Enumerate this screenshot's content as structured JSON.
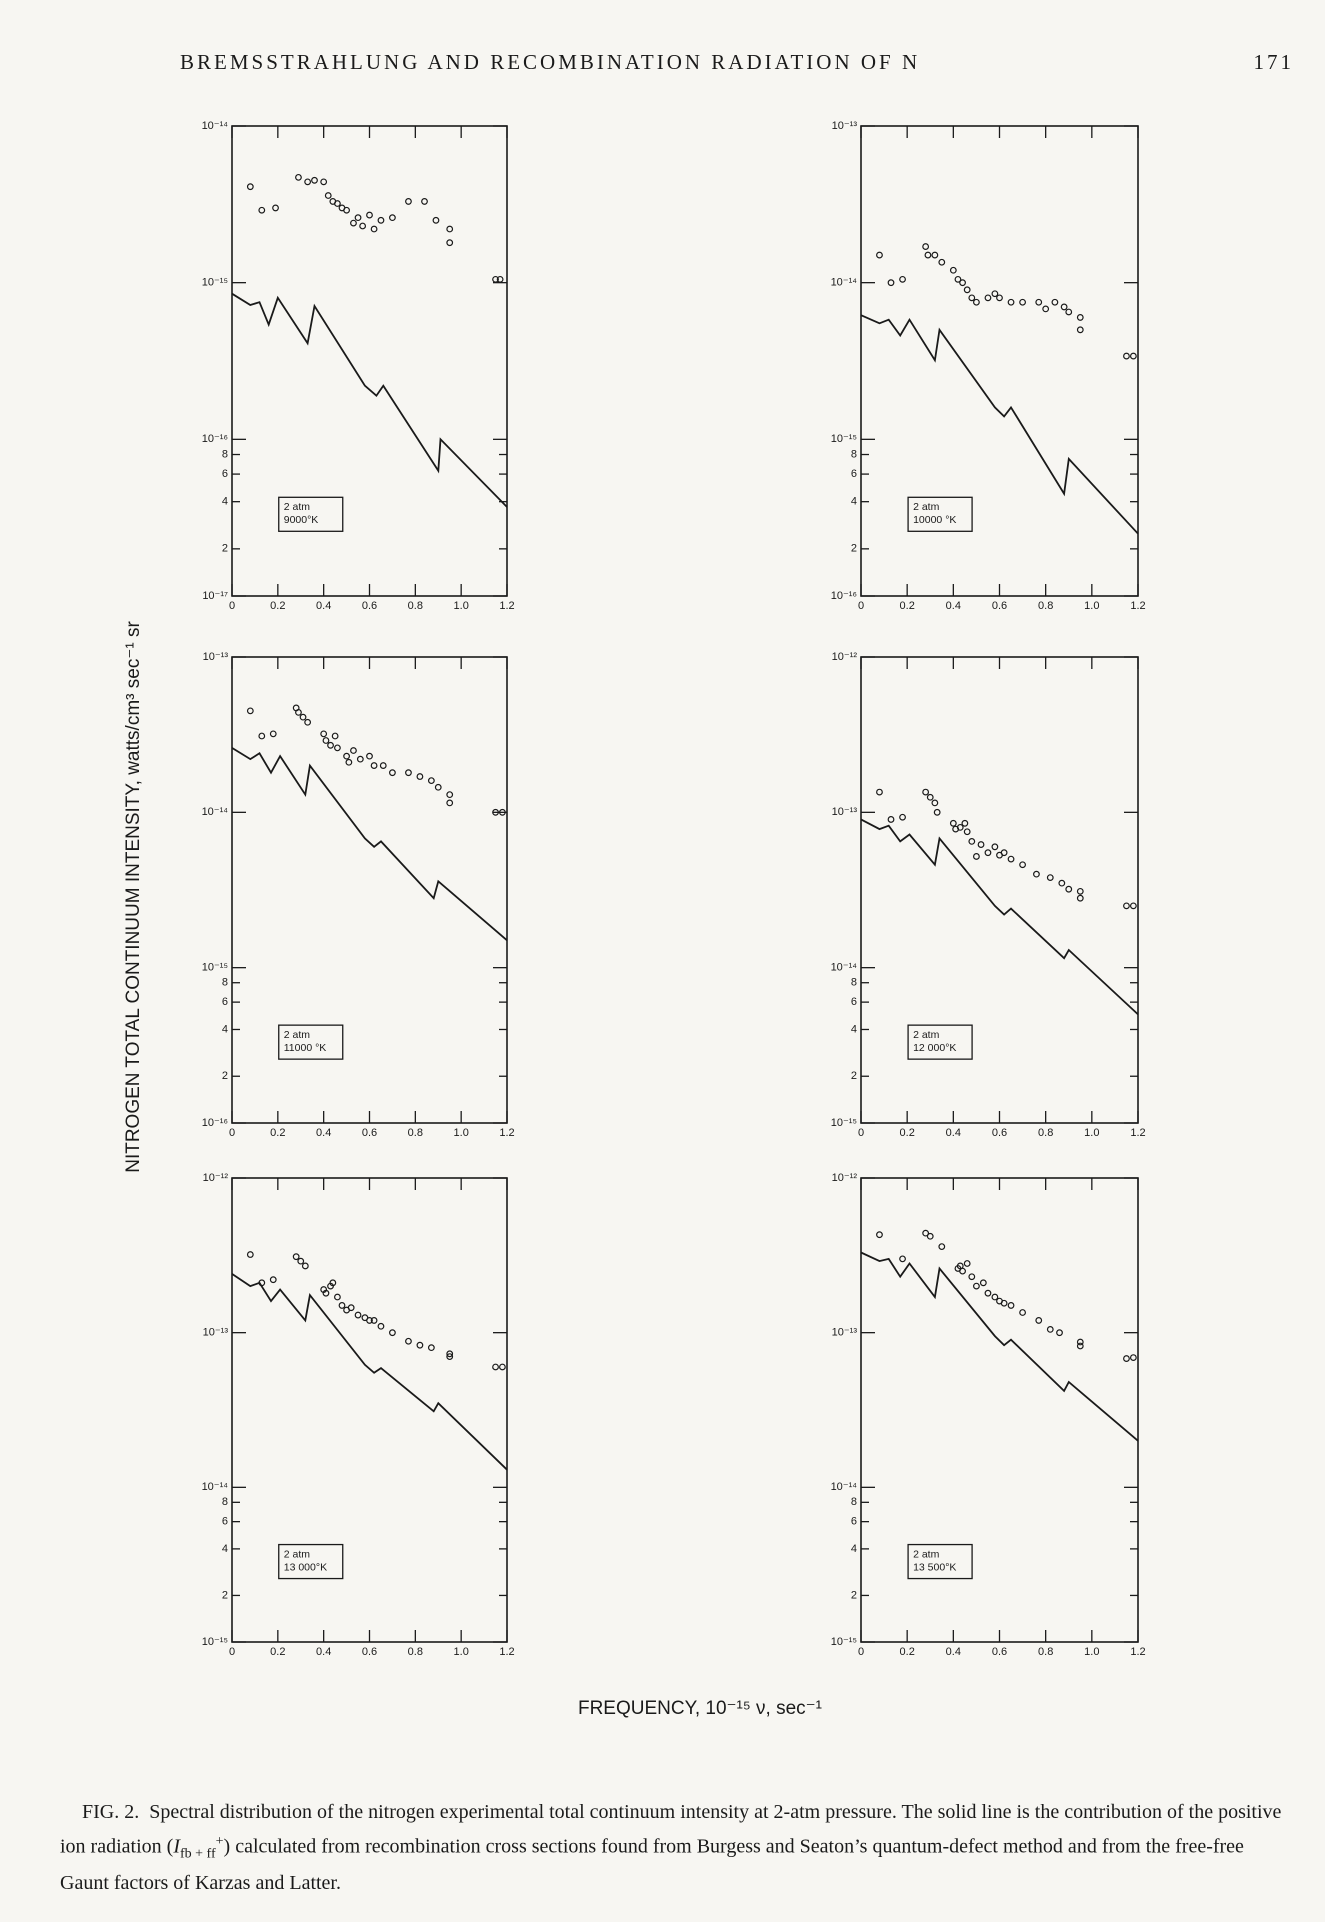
{
  "header": {
    "title": "BREMSSTRAHLUNG AND RECOMBINATION RADIATION OF N",
    "page_number": "171"
  },
  "y_axis_label": "NITROGEN TOTAL CONTINUUM INTENSITY, watts/cm³ sec⁻¹ sr",
  "x_axis_label": "FREQUENCY, 10⁻¹⁵ ν, sec⁻¹",
  "chart_data": [
    {
      "type": "scatter",
      "log_y": true,
      "annotation": [
        "2 atm",
        "9000°K"
      ],
      "xlim": [
        0,
        1.2
      ],
      "xticks": [
        0,
        0.2,
        0.4,
        0.6,
        0.8,
        {
          "value": 1,
          "label": "1.0"
        },
        1.2
      ],
      "ylim": [
        1e-17,
        1e-14
      ],
      "yticks": [
        {
          "value": 1e-14,
          "label": "10⁻¹⁴"
        },
        {
          "value": 1e-15,
          "label": "10⁻¹⁵"
        },
        {
          "value": 1e-16,
          "label": "10⁻¹⁶"
        },
        {
          "value": 8e-17,
          "label": "8"
        },
        {
          "value": 6e-17,
          "label": "6"
        },
        {
          "value": 4e-17,
          "label": "4"
        },
        {
          "value": 2e-17,
          "label": "2"
        },
        {
          "value": 1e-17,
          "label": "10⁻¹⁷"
        }
      ],
      "series": [
        {
          "type": "scatter",
          "color": "#1a1a1a",
          "x": [
            0.08,
            0.13,
            0.19,
            0.29,
            0.33,
            0.36,
            0.4,
            0.42,
            0.44,
            0.46,
            0.48,
            0.5,
            0.53,
            0.55,
            0.57,
            0.6,
            0.62,
            0.65,
            0.7,
            0.77,
            0.84,
            0.89,
            0.95,
            0.95,
            1.15,
            1.17
          ],
          "values": [
            4.1e-15,
            2.9e-15,
            3e-15,
            4.7e-15,
            4.4e-15,
            4.5e-15,
            4.4e-15,
            3.6e-15,
            3.3e-15,
            3.2e-15,
            3e-15,
            2.9e-15,
            2.4e-15,
            2.6e-15,
            2.3e-15,
            2.7e-15,
            2.2e-15,
            2.5e-15,
            2.6e-15,
            3.3e-15,
            3.3e-15,
            2.5e-15,
            2.2e-15,
            1.8e-15,
            1.05e-15,
            1.05e-15
          ]
        },
        {
          "type": "line",
          "color": "#1a1a1a",
          "x": [
            0,
            0.08,
            0.12,
            0.16,
            0.2,
            0.33,
            0.36,
            0.58,
            0.63,
            0.66,
            0.9,
            0.91,
            1.2
          ],
          "values": [
            8.5e-16,
            7.2e-16,
            7.5e-16,
            5.4e-16,
            8e-16,
            4.1e-16,
            7.1e-16,
            2.2e-16,
            1.9e-16,
            2.2e-16,
            6.3e-17,
            1e-16,
            3.7e-17
          ]
        }
      ]
    },
    {
      "type": "scatter",
      "log_y": true,
      "annotation": [
        "2 atm",
        "10000 °K"
      ],
      "xlim": [
        0,
        1.2
      ],
      "xticks": [
        0,
        0.2,
        0.4,
        0.6,
        0.8,
        {
          "value": 1,
          "label": "1.0"
        },
        1.2
      ],
      "ylim": [
        1e-16,
        1e-13
      ],
      "yticks": [
        {
          "value": 1e-13,
          "label": "10⁻¹³"
        },
        {
          "value": 1e-14,
          "label": "10⁻¹⁴"
        },
        {
          "value": 1e-15,
          "label": "10⁻¹⁵"
        },
        {
          "value": 8e-16,
          "label": "8"
        },
        {
          "value": 6e-16,
          "label": "6"
        },
        {
          "value": 4e-16,
          "label": "4"
        },
        {
          "value": 2e-16,
          "label": "2"
        },
        {
          "value": 1e-16,
          "label": "10⁻¹⁶"
        }
      ],
      "series": [
        {
          "type": "scatter",
          "color": "#1a1a1a",
          "x": [
            0.08,
            0.13,
            0.18,
            0.28,
            0.29,
            0.32,
            0.35,
            0.4,
            0.42,
            0.44,
            0.46,
            0.48,
            0.5,
            0.55,
            0.58,
            0.6,
            0.65,
            0.7,
            0.77,
            0.8,
            0.84,
            0.88,
            0.9,
            0.95,
            0.95,
            1.15,
            1.18
          ],
          "values": [
            1.5e-14,
            1e-14,
            1.05e-14,
            1.7e-14,
            1.5e-14,
            1.5e-14,
            1.35e-14,
            1.2e-14,
            1.05e-14,
            1e-14,
            9e-15,
            8e-15,
            7.5e-15,
            8e-15,
            8.5e-15,
            8e-15,
            7.5e-15,
            7.5e-15,
            7.5e-15,
            6.8e-15,
            7.5e-15,
            7e-15,
            6.5e-15,
            6e-15,
            5e-15,
            3.4e-15,
            3.4e-15
          ]
        },
        {
          "type": "line",
          "color": "#1a1a1a",
          "x": [
            0,
            0.08,
            0.12,
            0.17,
            0.21,
            0.32,
            0.34,
            0.58,
            0.62,
            0.65,
            0.88,
            0.9,
            1.2
          ],
          "values": [
            6.2e-15,
            5.5e-15,
            5.8e-15,
            4.6e-15,
            5.8e-15,
            3.2e-15,
            5e-15,
            1.6e-15,
            1.4e-15,
            1.6e-15,
            4.5e-16,
            7.5e-16,
            2.5e-16
          ]
        }
      ]
    },
    {
      "type": "scatter",
      "log_y": true,
      "annotation": [
        "2 atm",
        "11000 °K"
      ],
      "xlim": [
        0,
        1.2
      ],
      "xticks": [
        0,
        0.2,
        0.4,
        0.6,
        0.8,
        {
          "value": 1,
          "label": "1.0"
        },
        1.2
      ],
      "ylim": [
        1e-16,
        1e-13
      ],
      "yticks": [
        {
          "value": 1e-13,
          "label": "10⁻¹³"
        },
        {
          "value": 1e-14,
          "label": "10⁻¹⁴"
        },
        {
          "value": 1e-15,
          "label": "10⁻¹⁵"
        },
        {
          "value": 8e-16,
          "label": "8"
        },
        {
          "value": 6e-16,
          "label": "6"
        },
        {
          "value": 4e-16,
          "label": "4"
        },
        {
          "value": 2e-16,
          "label": "2"
        },
        {
          "value": 1e-16,
          "label": "10⁻¹⁶"
        }
      ],
      "series": [
        {
          "type": "scatter",
          "color": "#1a1a1a",
          "x": [
            0.08,
            0.13,
            0.18,
            0.28,
            0.29,
            0.31,
            0.33,
            0.4,
            0.41,
            0.43,
            0.45,
            0.46,
            0.5,
            0.51,
            0.53,
            0.56,
            0.6,
            0.62,
            0.66,
            0.7,
            0.77,
            0.82,
            0.87,
            0.9,
            0.95,
            0.95,
            1.15,
            1.18
          ],
          "values": [
            4.5e-14,
            3.1e-14,
            3.2e-14,
            4.7e-14,
            4.4e-14,
            4.1e-14,
            3.8e-14,
            3.2e-14,
            2.9e-14,
            2.7e-14,
            3.1e-14,
            2.6e-14,
            2.3e-14,
            2.1e-14,
            2.5e-14,
            2.2e-14,
            2.3e-14,
            2e-14,
            2e-14,
            1.8e-14,
            1.8e-14,
            1.7e-14,
            1.6e-14,
            1.45e-14,
            1.3e-14,
            1.15e-14,
            1e-14,
            1e-14
          ]
        },
        {
          "type": "line",
          "color": "#1a1a1a",
          "x": [
            0,
            0.08,
            0.12,
            0.17,
            0.21,
            0.32,
            0.34,
            0.58,
            0.62,
            0.65,
            0.88,
            0.9,
            1.2
          ],
          "values": [
            2.6e-14,
            2.2e-14,
            2.4e-14,
            1.8e-14,
            2.3e-14,
            1.3e-14,
            2e-14,
            6.8e-15,
            6e-15,
            6.5e-15,
            2.8e-15,
            3.6e-15,
            1.5e-15
          ]
        }
      ]
    },
    {
      "type": "scatter",
      "log_y": true,
      "annotation": [
        "2 atm",
        "12 000°K"
      ],
      "xlim": [
        0,
        1.2
      ],
      "xticks": [
        0,
        0.2,
        0.4,
        0.6,
        0.8,
        {
          "value": 1,
          "label": "1.0"
        },
        1.2
      ],
      "ylim": [
        1e-15,
        1e-12
      ],
      "yticks": [
        {
          "value": 1e-12,
          "label": "10⁻¹²"
        },
        {
          "value": 1e-13,
          "label": "10⁻¹³"
        },
        {
          "value": 1e-14,
          "label": "10⁻¹⁴"
        },
        {
          "value": 8e-15,
          "label": "8"
        },
        {
          "value": 6e-15,
          "label": "6"
        },
        {
          "value": 4e-15,
          "label": "4"
        },
        {
          "value": 2e-15,
          "label": "2"
        },
        {
          "value": 1e-15,
          "label": "10⁻¹⁵"
        }
      ],
      "series": [
        {
          "type": "scatter",
          "color": "#1a1a1a",
          "x": [
            0.08,
            0.13,
            0.18,
            0.28,
            0.3,
            0.32,
            0.33,
            0.4,
            0.41,
            0.43,
            0.45,
            0.46,
            0.48,
            0.5,
            0.52,
            0.55,
            0.58,
            0.6,
            0.62,
            0.65,
            0.7,
            0.76,
            0.82,
            0.87,
            0.9,
            0.95,
            0.95,
            1.15,
            1.18
          ],
          "values": [
            1.35e-13,
            9e-14,
            9.3e-14,
            1.35e-13,
            1.25e-13,
            1.15e-13,
            1e-13,
            8.5e-14,
            7.8e-14,
            8e-14,
            8.5e-14,
            7.5e-14,
            6.5e-14,
            5.2e-14,
            6.2e-14,
            5.5e-14,
            6e-14,
            5.3e-14,
            5.5e-14,
            5e-14,
            4.6e-14,
            4e-14,
            3.8e-14,
            3.5e-14,
            3.2e-14,
            3.1e-14,
            2.8e-14,
            2.5e-14,
            2.5e-14
          ]
        },
        {
          "type": "line",
          "color": "#1a1a1a",
          "x": [
            0,
            0.08,
            0.12,
            0.17,
            0.21,
            0.32,
            0.34,
            0.58,
            0.62,
            0.65,
            0.88,
            0.9,
            1.2
          ],
          "values": [
            9e-14,
            7.8e-14,
            8.2e-14,
            6.5e-14,
            7.2e-14,
            4.6e-14,
            6.8e-14,
            2.5e-14,
            2.2e-14,
            2.4e-14,
            1.15e-14,
            1.3e-14,
            5e-15
          ]
        }
      ]
    },
    {
      "type": "scatter",
      "log_y": true,
      "annotation": [
        "2 atm",
        "13 000°K"
      ],
      "xlim": [
        0,
        1.2
      ],
      "xticks": [
        0,
        0.2,
        0.4,
        0.6,
        0.8,
        {
          "value": 1,
          "label": "1.0"
        },
        1.2
      ],
      "ylim": [
        1e-15,
        1e-12
      ],
      "yticks": [
        {
          "value": 1e-12,
          "label": "10⁻¹²"
        },
        {
          "value": 1e-13,
          "label": "10⁻¹³"
        },
        {
          "value": 1e-14,
          "label": "10⁻¹⁴"
        },
        {
          "value": 8e-15,
          "label": "8"
        },
        {
          "value": 6e-15,
          "label": "6"
        },
        {
          "value": 4e-15,
          "label": "4"
        },
        {
          "value": 2e-15,
          "label": "2"
        },
        {
          "value": 1e-15,
          "label": "10⁻¹⁵"
        }
      ],
      "series": [
        {
          "type": "scatter",
          "color": "#1a1a1a",
          "x": [
            0.08,
            0.13,
            0.18,
            0.28,
            0.3,
            0.32,
            0.4,
            0.41,
            0.43,
            0.44,
            0.46,
            0.48,
            0.5,
            0.52,
            0.55,
            0.58,
            0.6,
            0.62,
            0.65,
            0.7,
            0.77,
            0.82,
            0.87,
            0.95,
            0.95,
            1.15,
            1.18
          ],
          "values": [
            3.2e-13,
            2.1e-13,
            2.2e-13,
            3.1e-13,
            2.9e-13,
            2.7e-13,
            1.9e-13,
            1.8e-13,
            2e-13,
            2.1e-13,
            1.7e-13,
            1.5e-13,
            1.4e-13,
            1.45e-13,
            1.3e-13,
            1.25e-13,
            1.2e-13,
            1.2e-13,
            1.1e-13,
            1e-13,
            8.8e-14,
            8.3e-14,
            8e-14,
            7.3e-14,
            7e-14,
            6e-14,
            6e-14
          ]
        },
        {
          "type": "line",
          "color": "#1a1a1a",
          "x": [
            0,
            0.08,
            0.12,
            0.17,
            0.21,
            0.32,
            0.34,
            0.58,
            0.62,
            0.65,
            0.88,
            0.9,
            1.2
          ],
          "values": [
            2.4e-13,
            2e-13,
            2.1e-13,
            1.6e-13,
            1.9e-13,
            1.2e-13,
            1.75e-13,
            6.2e-14,
            5.5e-14,
            5.9e-14,
            3.1e-14,
            3.5e-14,
            1.3e-14
          ]
        }
      ]
    },
    {
      "type": "scatter",
      "log_y": true,
      "annotation": [
        "2 atm",
        "13 500°K"
      ],
      "xlim": [
        0,
        1.2
      ],
      "xticks": [
        0,
        0.2,
        0.4,
        0.6,
        0.8,
        {
          "value": 1,
          "label": "1.0"
        },
        1.2
      ],
      "ylim": [
        1e-15,
        1e-12
      ],
      "yticks": [
        {
          "value": 1e-12,
          "label": "10⁻¹²"
        },
        {
          "value": 1e-13,
          "label": "10⁻¹³"
        },
        {
          "value": 1e-14,
          "label": "10⁻¹⁴"
        },
        {
          "value": 8e-15,
          "label": "8"
        },
        {
          "value": 6e-15,
          "label": "6"
        },
        {
          "value": 4e-15,
          "label": "4"
        },
        {
          "value": 2e-15,
          "label": "2"
        },
        {
          "value": 1e-15,
          "label": "10⁻¹⁵"
        }
      ],
      "series": [
        {
          "type": "scatter",
          "color": "#1a1a1a",
          "x": [
            0.08,
            0.18,
            0.28,
            0.3,
            0.35,
            0.42,
            0.43,
            0.44,
            0.46,
            0.48,
            0.5,
            0.53,
            0.55,
            0.58,
            0.6,
            0.62,
            0.65,
            0.7,
            0.77,
            0.82,
            0.86,
            0.95,
            0.95,
            1.15,
            1.18
          ],
          "values": [
            4.3e-13,
            3e-13,
            4.4e-13,
            4.2e-13,
            3.6e-13,
            2.6e-13,
            2.7e-13,
            2.5e-13,
            2.8e-13,
            2.3e-13,
            2e-13,
            2.1e-13,
            1.8e-13,
            1.7e-13,
            1.6e-13,
            1.55e-13,
            1.5e-13,
            1.35e-13,
            1.2e-13,
            1.05e-13,
            1e-13,
            8.7e-14,
            8.2e-14,
            6.8e-14,
            6.9e-14
          ]
        },
        {
          "type": "line",
          "color": "#1a1a1a",
          "x": [
            0,
            0.08,
            0.12,
            0.17,
            0.21,
            0.32,
            0.34,
            0.58,
            0.62,
            0.65,
            0.88,
            0.9,
            1.2
          ],
          "values": [
            3.3e-13,
            2.9e-13,
            3e-13,
            2.3e-13,
            2.8e-13,
            1.7e-13,
            2.6e-13,
            9.5e-14,
            8.3e-14,
            9e-14,
            4.2e-14,
            4.8e-14,
            2e-14
          ]
        }
      ]
    }
  ],
  "caption": {
    "label": "FIG. 2.",
    "text_1": "Spectral distribution of the nitrogen experimental total continuum intensity at 2-atm pressure. The solid line is the contribution of the positive ion radiation (",
    "symbol": "I",
    "subscript": "fb + ff",
    "superscript": "+",
    "text_2": ") calculated from recombination cross sections found from Burgess and Seaton’s quantum-defect method and from the free-free Gaunt factors of Karzas and Latter."
  }
}
